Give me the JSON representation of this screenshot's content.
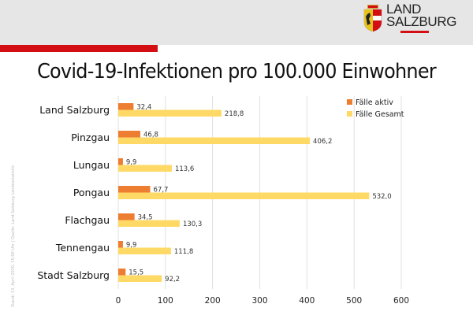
{
  "header": {
    "logo_line1": "LAND",
    "logo_line2": "SALZBURG"
  },
  "side_note": "Stand: 13. April 2020, 15:00 Uhr | Quelle: Land Salzburg Landesstatistik",
  "colors": {
    "aktiv": "#ed7d31",
    "gesamt": "#ffd966",
    "brand_red": "#d40f14"
  },
  "chart_data": {
    "type": "bar",
    "orientation": "horizontal",
    "title": "Covid-19-Infektionen pro 100.000 Einwohner",
    "xlabel": "",
    "ylabel": "",
    "xlim": [
      0,
      600
    ],
    "xticks": [
      "0",
      "100",
      "200",
      "300",
      "400",
      "500",
      "600"
    ],
    "xtick_values": [
      0,
      100,
      200,
      300,
      400,
      500,
      600
    ],
    "grid": true,
    "legend_position": "top-right",
    "categories": [
      "Land Salzburg",
      "Pinzgau",
      "Lungau",
      "Pongau",
      "Flachgau",
      "Tennengau",
      "Stadt Salzburg"
    ],
    "series": [
      {
        "name": "Fälle aktiv",
        "values": [
          32.4,
          46.8,
          9.9,
          67.7,
          34.5,
          9.9,
          15.5
        ],
        "labels": [
          "32,4",
          "46,8",
          "9,9",
          "67,7",
          "34,5",
          "9,9",
          "15,5"
        ]
      },
      {
        "name": "Fälle Gesamt",
        "values": [
          218.8,
          406.2,
          113.6,
          532.0,
          130.3,
          111.8,
          92.2
        ],
        "labels": [
          "218,8",
          "406,2",
          "113,6",
          "532,0",
          "130,3",
          "111,8",
          "92,2"
        ]
      }
    ]
  }
}
